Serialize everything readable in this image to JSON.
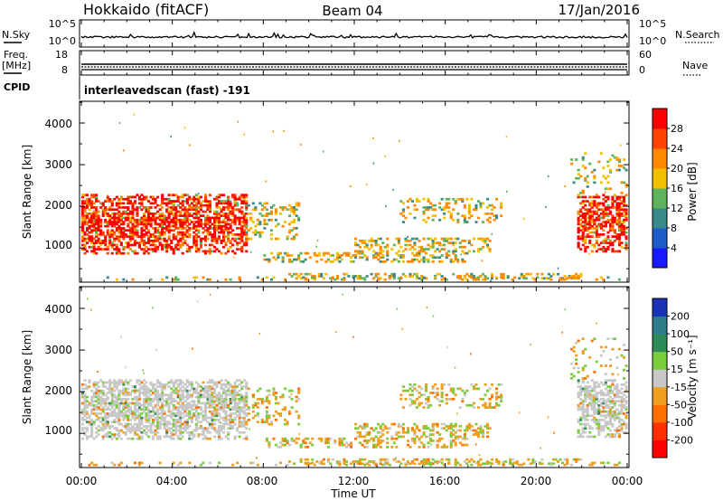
{
  "header": {
    "site": "Hokkaido (fitACF)",
    "beam": "Beam 04",
    "date": "17/Jan/2016"
  },
  "sky_panel": {
    "left_label": "N.Sky",
    "right_label": "N.Search",
    "left_ticks": [
      "10^5",
      "10^0"
    ],
    "right_ticks": [
      "10^5",
      "10^0"
    ]
  },
  "freq_panel": {
    "left_label": "Freq.",
    "left_unit": "[MHz]",
    "right_label": "Nave",
    "left_ticks": [
      "18",
      "8"
    ],
    "right_ticks": [
      "60",
      "0"
    ]
  },
  "cpid_panel": {
    "label": "CPID",
    "text": "interleavedscan (fast) -191"
  },
  "chart_data": [
    {
      "type": "heatmap",
      "name": "power",
      "ylabel": "Slant Range [km]",
      "yticks": [
        "1000",
        "2000",
        "3000",
        "4000"
      ],
      "ylim": [
        200,
        4500
      ],
      "xlim": [
        0,
        24
      ],
      "colorbar_label": "Power [dB]",
      "colorbar_ticks": [
        "4",
        "8",
        "12",
        "16",
        "20",
        "24",
        "28"
      ],
      "colorbar_colors": [
        "#1a1aff",
        "#1e5cc8",
        "#3a8a8a",
        "#5fb35f",
        "#f3c000",
        "#ff8a00",
        "#ff4400",
        "#ff0000"
      ]
    },
    {
      "type": "heatmap",
      "name": "velocity",
      "ylabel": "Slant Range [km]",
      "yticks": [
        "1000",
        "2000",
        "3000",
        "4000"
      ],
      "ylim": [
        200,
        4500
      ],
      "xlim": [
        0,
        24
      ],
      "colorbar_label": "Velocity [m s⁻¹]",
      "colorbar_ticks": [
        "200",
        "100",
        "50",
        "15",
        "-15",
        "-50",
        "-100",
        "-200"
      ],
      "colorbar_colors": [
        "#1a33b3",
        "#2e7d8c",
        "#2e8b57",
        "#7ccd3c",
        "#c8c8c8",
        "#f0a020",
        "#ff7000",
        "#ff3000",
        "#ff0000"
      ]
    }
  ],
  "time_axis": {
    "ticks": [
      "00:00",
      "04:00",
      "08:00",
      "12:00",
      "16:00",
      "20:00",
      "00:00"
    ],
    "label": "Time UT"
  }
}
